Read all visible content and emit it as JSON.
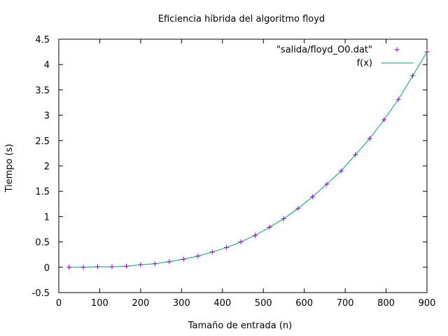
{
  "chart_data": {
    "type": "scatter",
    "title": "Eficiencia híbrida del algoritmo floyd",
    "xlabel": "Tamaño de entrada (n)",
    "ylabel": "Tiempo (s)",
    "xlim": [
      0,
      900
    ],
    "ylim": [
      -0.5,
      4.5
    ],
    "xticks": [
      "0",
      "100",
      "200",
      "300",
      "400",
      "500",
      "600",
      "700",
      "800",
      "900"
    ],
    "yticks": [
      "-0.5",
      "0",
      "0.5",
      "1",
      "1.5",
      "2",
      "2.5",
      "3",
      "3.5",
      "4",
      "4.5"
    ],
    "grid": false,
    "legend_position": "top-right",
    "series": [
      {
        "name": "\"salida/floyd_O0.dat\"",
        "kind": "points",
        "marker": "plus",
        "color": "#9400d3",
        "x": [
          25,
          60,
          95,
          130,
          165,
          200,
          235,
          270,
          305,
          340,
          375,
          410,
          445,
          480,
          515,
          550,
          585,
          620,
          655,
          690,
          725,
          760,
          795,
          830,
          865,
          900
        ],
        "y": [
          0.0,
          0.0,
          0.01,
          0.01,
          0.02,
          0.05,
          0.07,
          0.11,
          0.16,
          0.22,
          0.3,
          0.39,
          0.5,
          0.63,
          0.79,
          0.96,
          1.16,
          1.39,
          1.64,
          1.9,
          2.22,
          2.54,
          2.91,
          3.31,
          3.78,
          4.25
        ]
      },
      {
        "name": "f(x)",
        "kind": "line",
        "color": "#009e73",
        "x": [
          25,
          60,
          95,
          130,
          165,
          200,
          235,
          270,
          305,
          340,
          375,
          410,
          445,
          480,
          515,
          550,
          585,
          620,
          655,
          690,
          725,
          760,
          795,
          830,
          865,
          900
        ],
        "y": [
          0.0,
          0.0,
          0.01,
          0.01,
          0.02,
          0.05,
          0.07,
          0.11,
          0.16,
          0.22,
          0.3,
          0.39,
          0.5,
          0.63,
          0.79,
          0.96,
          1.16,
          1.39,
          1.64,
          1.9,
          2.22,
          2.54,
          2.91,
          3.31,
          3.78,
          4.25
        ]
      }
    ]
  }
}
